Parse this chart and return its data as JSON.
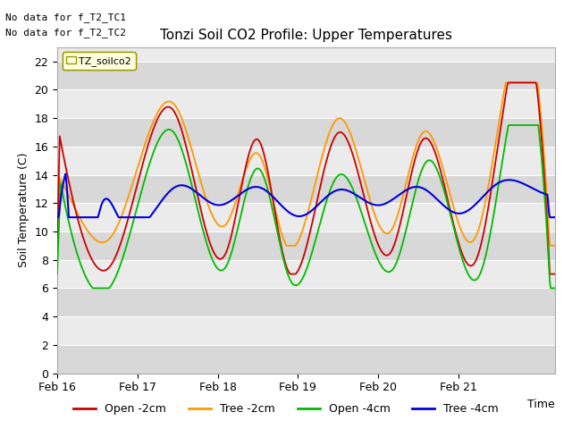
{
  "title": "Tonzi Soil CO2 Profile: Upper Temperatures",
  "ylabel": "Soil Temperature (C)",
  "xlabel": "Time",
  "note_line1": "No data for f_T2_TC1",
  "note_line2": "No data for f_T2_TC2",
  "legend_label_box": "TZ_soilco2",
  "ylim": [
    0,
    23
  ],
  "yticks": [
    0,
    2,
    4,
    6,
    8,
    10,
    12,
    14,
    16,
    18,
    20,
    22
  ],
  "xtick_labels": [
    "Feb 16",
    "Feb 17",
    "Feb 18",
    "Feb 19",
    "Feb 20",
    "Feb 21"
  ],
  "colors": {
    "open_2cm": "#cc0000",
    "tree_2cm": "#ff9900",
    "open_4cm": "#00bb00",
    "tree_4cm": "#0000dd"
  },
  "plot_bg_light": "#ebebeb",
  "plot_bg_dark": "#d8d8d8",
  "legend_entries": [
    "Open -2cm",
    "Tree -2cm",
    "Open -4cm",
    "Tree -4cm"
  ]
}
